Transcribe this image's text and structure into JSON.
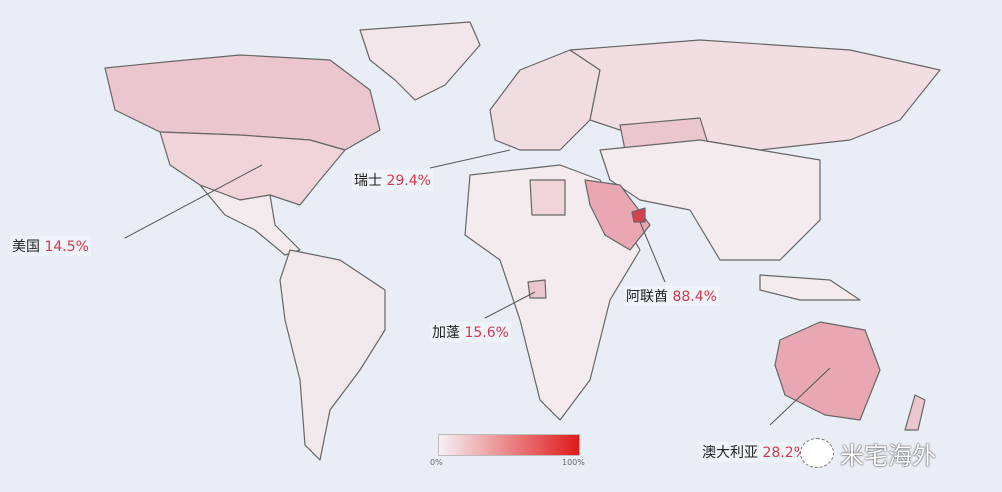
{
  "labels": [
    {
      "country": "美国",
      "value": "14.5%"
    },
    {
      "country": "瑞士",
      "value": "29.4%"
    },
    {
      "country": "阿联酋",
      "value": "88.4%"
    },
    {
      "country": "加蓬",
      "value": "15.6%"
    },
    {
      "country": "澳大利亚",
      "value": "28.2%"
    }
  ],
  "legend": {
    "min": "0%",
    "max": "100%",
    "color_min": "#f4f1f4",
    "color_max": "#e01a1a"
  },
  "watermark": "米宅海外"
}
